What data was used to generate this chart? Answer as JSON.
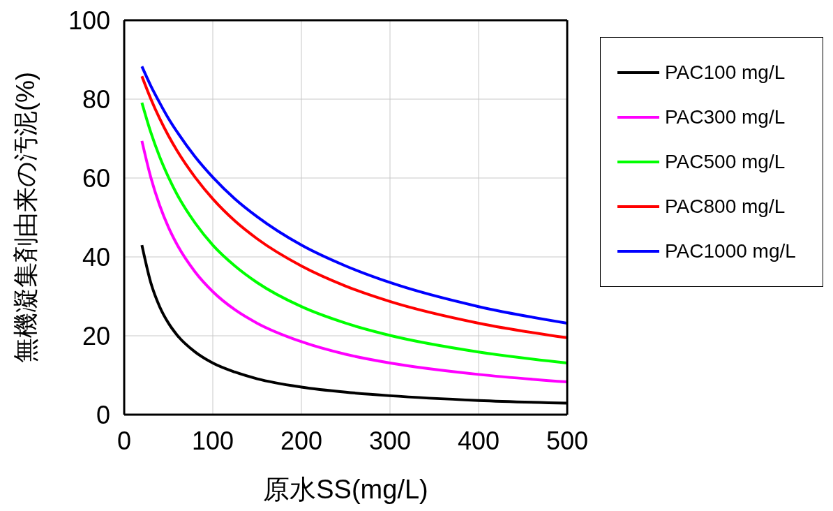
{
  "chart_data": {
    "type": "line",
    "xlabel": "原水SS(mg/L)",
    "ylabel": "無機凝集剤由来の汚泥(%)",
    "x": [
      20,
      30,
      40,
      50,
      60,
      80,
      100,
      125,
      150,
      200,
      250,
      300,
      400,
      500
    ],
    "series": [
      {
        "name": "PAC100 mg/L",
        "color": "#000000",
        "values": [
          43.0,
          33.5,
          27.4,
          23.2,
          20.1,
          15.9,
          13.1,
          10.8,
          9.1,
          7.0,
          5.7,
          4.8,
          3.6,
          2.9
        ]
      },
      {
        "name": "PAC300 mg/L",
        "color": "#ff00ff",
        "values": [
          69.4,
          60.2,
          53.1,
          47.5,
          43.0,
          36.2,
          31.2,
          26.6,
          23.2,
          18.5,
          15.3,
          13.1,
          10.2,
          8.3
        ]
      },
      {
        "name": "PAC500 mg/L",
        "color": "#00ff00",
        "values": [
          79.1,
          71.6,
          65.4,
          60.2,
          55.7,
          48.6,
          43.0,
          37.7,
          33.5,
          27.4,
          23.2,
          20.1,
          15.9,
          13.1
        ]
      },
      {
        "name": "PAC800 mg/L",
        "color": "#ff0000",
        "values": [
          85.8,
          80.1,
          75.1,
          70.7,
          66.8,
          60.2,
          54.7,
          49.1,
          44.6,
          37.7,
          32.6,
          28.7,
          23.2,
          19.5
        ]
      },
      {
        "name": "PAC1000 mg/L",
        "color": "#0000ff",
        "values": [
          88.3,
          83.4,
          79.1,
          75.1,
          71.6,
          65.4,
          60.2,
          54.7,
          50.2,
          43.0,
          37.7,
          33.5,
          27.4,
          23.2
        ]
      }
    ],
    "xlim": [
      0,
      500
    ],
    "xticks": [
      0,
      100,
      200,
      300,
      400,
      500
    ],
    "ylim": [
      0,
      100
    ],
    "yticks": [
      0,
      20,
      40,
      60,
      80,
      100
    ],
    "grid": true,
    "legend": "right",
    "marker": "none",
    "line_style": "solid"
  }
}
